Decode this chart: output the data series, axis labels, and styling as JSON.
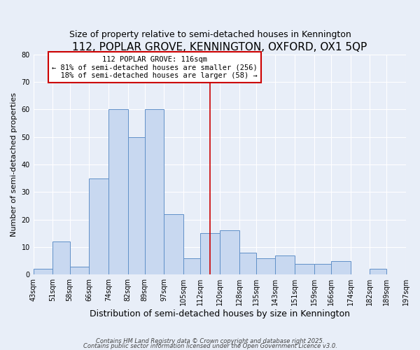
{
  "title": "112, POPLAR GROVE, KENNINGTON, OXFORD, OX1 5QP",
  "subtitle": "Size of property relative to semi-detached houses in Kennington",
  "xlabel": "Distribution of semi-detached houses by size in Kennington",
  "ylabel": "Number of semi-detached properties",
  "bin_labels": [
    "43sqm",
    "51sqm",
    "58sqm",
    "66sqm",
    "74sqm",
    "82sqm",
    "89sqm",
    "97sqm",
    "105sqm",
    "112sqm",
    "120sqm",
    "128sqm",
    "135sqm",
    "143sqm",
    "151sqm",
    "159sqm",
    "166sqm",
    "174sqm",
    "182sqm",
    "189sqm",
    "197sqm"
  ],
  "bin_edges": [
    43,
    51,
    58,
    66,
    74,
    82,
    89,
    97,
    105,
    112,
    120,
    128,
    135,
    143,
    151,
    159,
    166,
    174,
    182,
    189,
    197
  ],
  "bar_heights": [
    2,
    12,
    3,
    35,
    60,
    50,
    60,
    22,
    6,
    15,
    16,
    8,
    6,
    7,
    4,
    4,
    5,
    0,
    2,
    0,
    0
  ],
  "bar_color": "#c8d8f0",
  "bar_edge_color": "#6090c8",
  "red_line_x": 116,
  "red_line_label": "112 POPLAR GROVE: 116sqm",
  "pct_smaller": 81,
  "pct_larger": 18,
  "n_smaller": 256,
  "n_larger": 58,
  "ylim": [
    0,
    80
  ],
  "yticks": [
    0,
    10,
    20,
    30,
    40,
    50,
    60,
    70,
    80
  ],
  "annotation_box_color": "#cc0000",
  "background_color": "#e8eef8",
  "footer_line1": "Contains HM Land Registry data © Crown copyright and database right 2025.",
  "footer_line2": "Contains public sector information licensed under the Open Government Licence v3.0.",
  "title_fontsize": 11,
  "subtitle_fontsize": 9,
  "xlabel_fontsize": 9,
  "ylabel_fontsize": 8,
  "tick_fontsize": 7,
  "annot_fontsize": 7.5,
  "footer_fontsize": 6
}
